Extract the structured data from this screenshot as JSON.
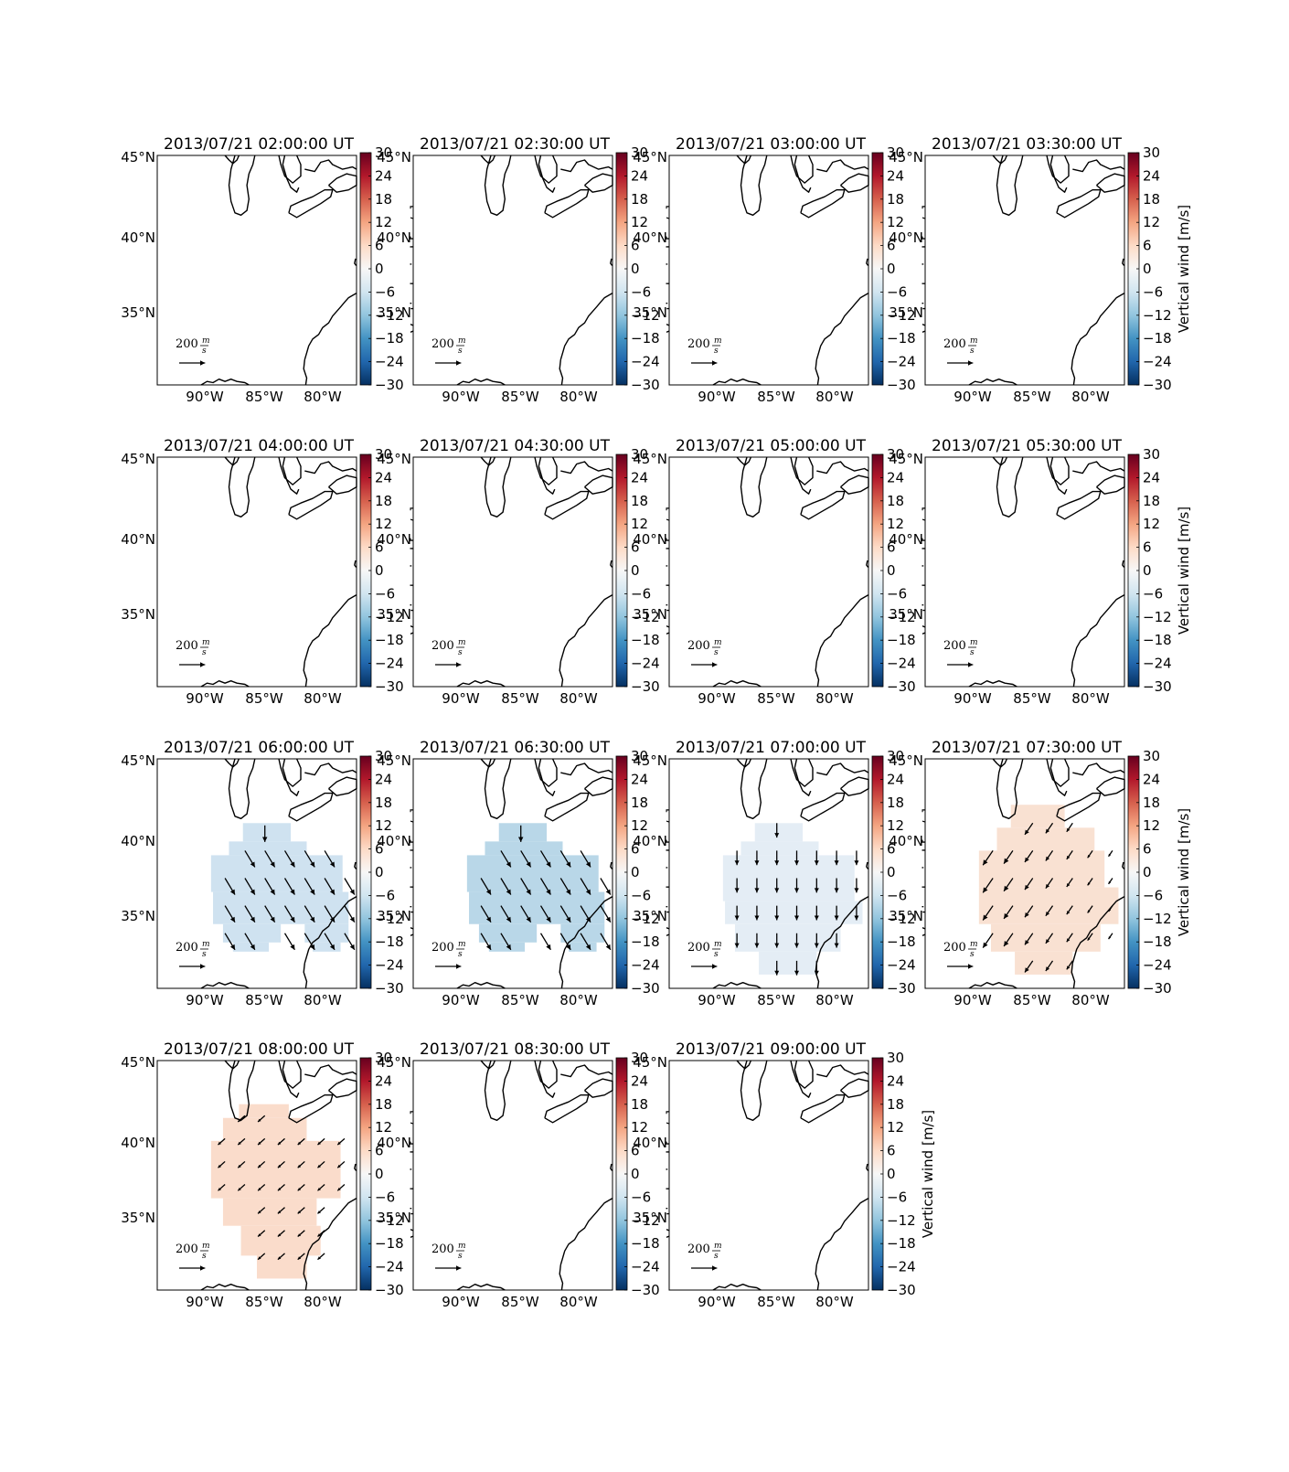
{
  "figure": {
    "colorbar": {
      "label": "Vertical wind [m/s]",
      "ticks": [
        "30",
        "24",
        "18",
        "12",
        "6",
        "0",
        "−6",
        "−12",
        "−18",
        "−24",
        "−30"
      ],
      "range": [
        -30,
        30
      ],
      "colormap": [
        "#053061",
        "#2166ac",
        "#4393c3",
        "#92c5de",
        "#d1e5f0",
        "#f7f7f7",
        "#fddbc7",
        "#f4a582",
        "#d6604d",
        "#b2182b",
        "#67001f"
      ]
    },
    "lat_ticks": [
      "45°N",
      "40°N",
      "35°N"
    ],
    "lon_ticks": [
      "90°W",
      "85°W",
      "80°W"
    ],
    "quiver_key": {
      "value": "200",
      "unit_num": "m",
      "unit_den": "s"
    },
    "map_extent": {
      "lon": [
        -94,
        -77.5
      ],
      "lat": [
        30.5,
        45
      ]
    },
    "panels": [
      {
        "title": "2013/07/21 02:00:00 UT",
        "field": null
      },
      {
        "title": "2013/07/21 02:30:00 UT",
        "field": null
      },
      {
        "title": "2013/07/21 03:00:00 UT",
        "field": null
      },
      {
        "title": "2013/07/21 03:30:00 UT",
        "field": null
      },
      {
        "title": "2013/07/21 04:00:00 UT",
        "field": null
      },
      {
        "title": "2013/07/21 04:30:00 UT",
        "field": null
      },
      {
        "title": "2013/07/21 05:00:00 UT",
        "field": null
      },
      {
        "title": "2013/07/21 05:30:00 UT",
        "field": null
      },
      {
        "title": "2013/07/21 06:00:00 UT",
        "field": {
          "vertical_wind": -7,
          "color": "#cfe2f0",
          "shape": "A"
        }
      },
      {
        "title": "2013/07/21 06:30:00 UT",
        "field": {
          "vertical_wind": -10,
          "color": "#b9d7e8",
          "shape": "A"
        }
      },
      {
        "title": "2013/07/21 07:00:00 UT",
        "field": {
          "vertical_wind": -4,
          "color": "#e4edf5",
          "shape": "B"
        }
      },
      {
        "title": "2013/07/21 07:30:00 UT",
        "field": {
          "vertical_wind": 4,
          "color": "#f9e1d2",
          "shape": "C"
        }
      },
      {
        "title": "2013/07/21 08:00:00 UT",
        "field": {
          "vertical_wind": 5,
          "color": "#fadccb",
          "shape": "D"
        }
      },
      {
        "title": "2013/07/21 08:30:00 UT",
        "field": null
      },
      {
        "title": "2013/07/21 09:00:00 UT",
        "field": null
      }
    ]
  }
}
